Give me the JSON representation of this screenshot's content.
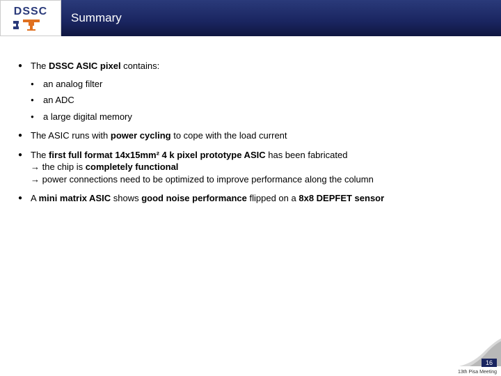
{
  "header": {
    "logo_text": "DSSC",
    "title": "Summary"
  },
  "colors": {
    "header_gradient_top": "#2a3a7a",
    "header_gradient_bottom": "#0f1640",
    "logo_icon_orange": "#e07020",
    "logo_text_color": "#2a3a7a",
    "page_num_bg": "#1a2560",
    "text": "#000000"
  },
  "bullets": [
    {
      "runs": [
        {
          "t": "The ",
          "b": false
        },
        {
          "t": "DSSC ASIC pixel ",
          "b": true
        },
        {
          "t": "contains:",
          "b": false
        }
      ],
      "sub": [
        [
          {
            "t": "an analog filter",
            "b": false
          }
        ],
        [
          {
            "t": "an ADC",
            "b": false
          }
        ],
        [
          {
            "t": "a large digital memory",
            "b": false
          }
        ]
      ]
    },
    {
      "runs": [
        {
          "t": "The ASIC runs with ",
          "b": false
        },
        {
          "t": "power cycling ",
          "b": true
        },
        {
          "t": "to cope with the load current",
          "b": false
        }
      ]
    },
    {
      "runs": [
        {
          "t": "The ",
          "b": false
        },
        {
          "t": "first full format 14x15mm² 4 k pixel prototype ASIC ",
          "b": true
        },
        {
          "t": "has been fabricated",
          "b": false
        }
      ],
      "lines": [
        [
          {
            "t": "the chip is ",
            "b": false
          },
          {
            "t": "completely functional",
            "b": true
          }
        ],
        [
          {
            "t": "power connections need to be optimized to improve performance along the column",
            "b": false
          }
        ]
      ]
    },
    {
      "runs": [
        {
          "t": "A ",
          "b": false
        },
        {
          "t": "mini matrix ASIC ",
          "b": true
        },
        {
          "t": "shows ",
          "b": false
        },
        {
          "t": "good noise performance ",
          "b": true
        },
        {
          "t": "flipped on a ",
          "b": false
        },
        {
          "t": "8x8 DEPFET sensor",
          "b": true
        }
      ]
    }
  ],
  "footer": {
    "page_number": "16",
    "meeting": "13th Pisa Meeting"
  }
}
